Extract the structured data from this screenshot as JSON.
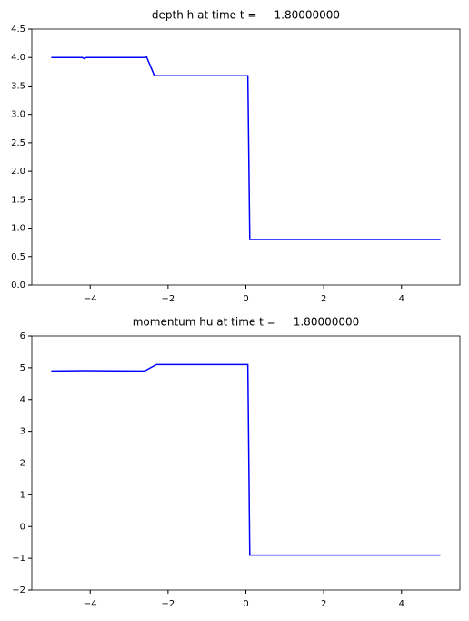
{
  "chart_data": [
    {
      "type": "line",
      "title": "depth h at time t =     1.80000000",
      "series": [
        {
          "color": "#0000ff",
          "x": [
            -5,
            -4.2,
            -4.15,
            -4.1,
            -2.6,
            -2.55,
            -2.35,
            0.05,
            0.1,
            5
          ],
          "values": [
            4,
            4,
            3.98,
            4,
            4,
            4.01,
            3.68,
            3.68,
            0.8,
            0.8
          ]
        }
      ],
      "xlim": [
        -5.5,
        5.5
      ],
      "xticks": [
        {
          "value": -4,
          "label": "−4"
        },
        {
          "value": -2,
          "label": "−2"
        },
        0,
        2,
        4
      ],
      "ylim": [
        0,
        4.5
      ],
      "yticks": [
        {
          "value": 0,
          "label": "0.0"
        },
        0.5,
        {
          "value": 1,
          "label": "1.0"
        },
        1.5,
        {
          "value": 2,
          "label": "2.0"
        },
        2.5,
        {
          "value": 3,
          "label": "3.0"
        },
        3.5,
        {
          "value": 4,
          "label": "4.0"
        },
        4.5
      ]
    },
    {
      "type": "line",
      "title": "momentum hu at time t =     1.80000000",
      "series": [
        {
          "color": "#0000ff",
          "x": [
            -5,
            -4.15,
            -2.6,
            -2.3,
            0.05,
            0.1,
            5
          ],
          "values": [
            4.9,
            4.91,
            4.9,
            5.1,
            5.1,
            -0.9,
            -0.9
          ]
        }
      ],
      "xlim": [
        -5.5,
        5.5
      ],
      "xticks": [
        {
          "value": -4,
          "label": "−4"
        },
        {
          "value": -2,
          "label": "−2"
        },
        0,
        2,
        4
      ],
      "ylim": [
        -2,
        6
      ],
      "yticks": [
        {
          "value": -2,
          "label": "−2"
        },
        {
          "value": -1,
          "label": "−1"
        },
        0,
        1,
        2,
        3,
        4,
        5,
        6
      ]
    }
  ]
}
